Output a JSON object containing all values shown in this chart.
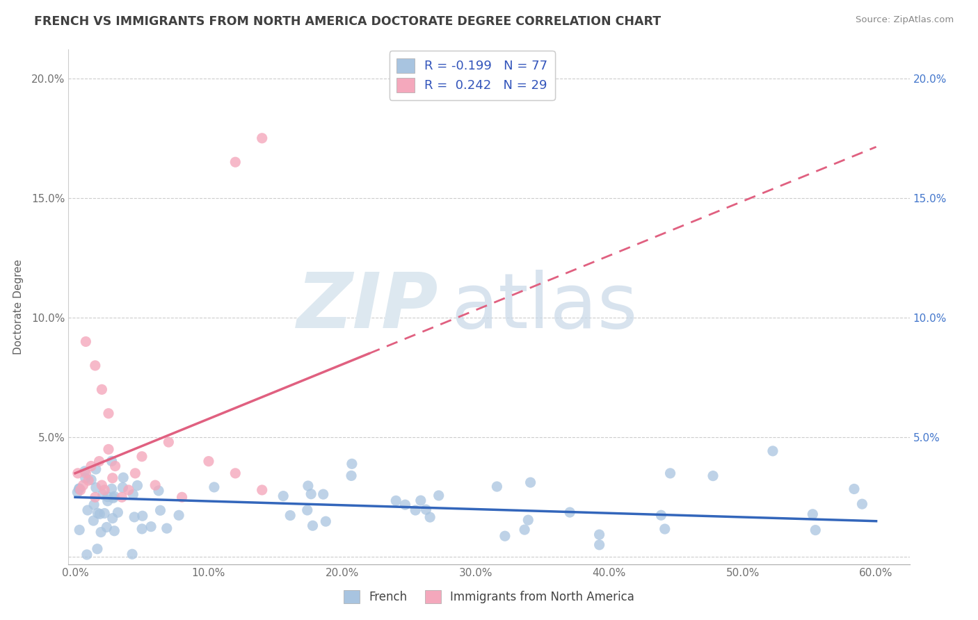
{
  "title": "FRENCH VS IMMIGRANTS FROM NORTH AMERICA DOCTORATE DEGREE CORRELATION CHART",
  "source": "Source: ZipAtlas.com",
  "ylabel": "Doctorate Degree",
  "legend_label_1": "French",
  "legend_label_2": "Immigrants from North America",
  "r1": "-0.199",
  "n1": "77",
  "r2": "0.242",
  "n2": "29",
  "color_1": "#a8c4e0",
  "color_2": "#f4a8bc",
  "trendline_color_1": "#3366bb",
  "trendline_color_2": "#e06080",
  "xlim": [
    0.0,
    0.6
  ],
  "ylim": [
    0.0,
    0.205
  ],
  "xtick_labels": [
    "0.0%",
    "10.0%",
    "20.0%",
    "30.0%",
    "40.0%",
    "50.0%",
    "60.0%"
  ],
  "ytick_labels": [
    "",
    "5.0%",
    "10.0%",
    "15.0%",
    "20.0%"
  ],
  "right_ytick_labels": [
    "",
    "5.0%",
    "10.0%",
    "15.0%",
    "20.0%"
  ],
  "background_color": "#ffffff",
  "grid_color": "#cccccc",
  "title_color": "#404040"
}
